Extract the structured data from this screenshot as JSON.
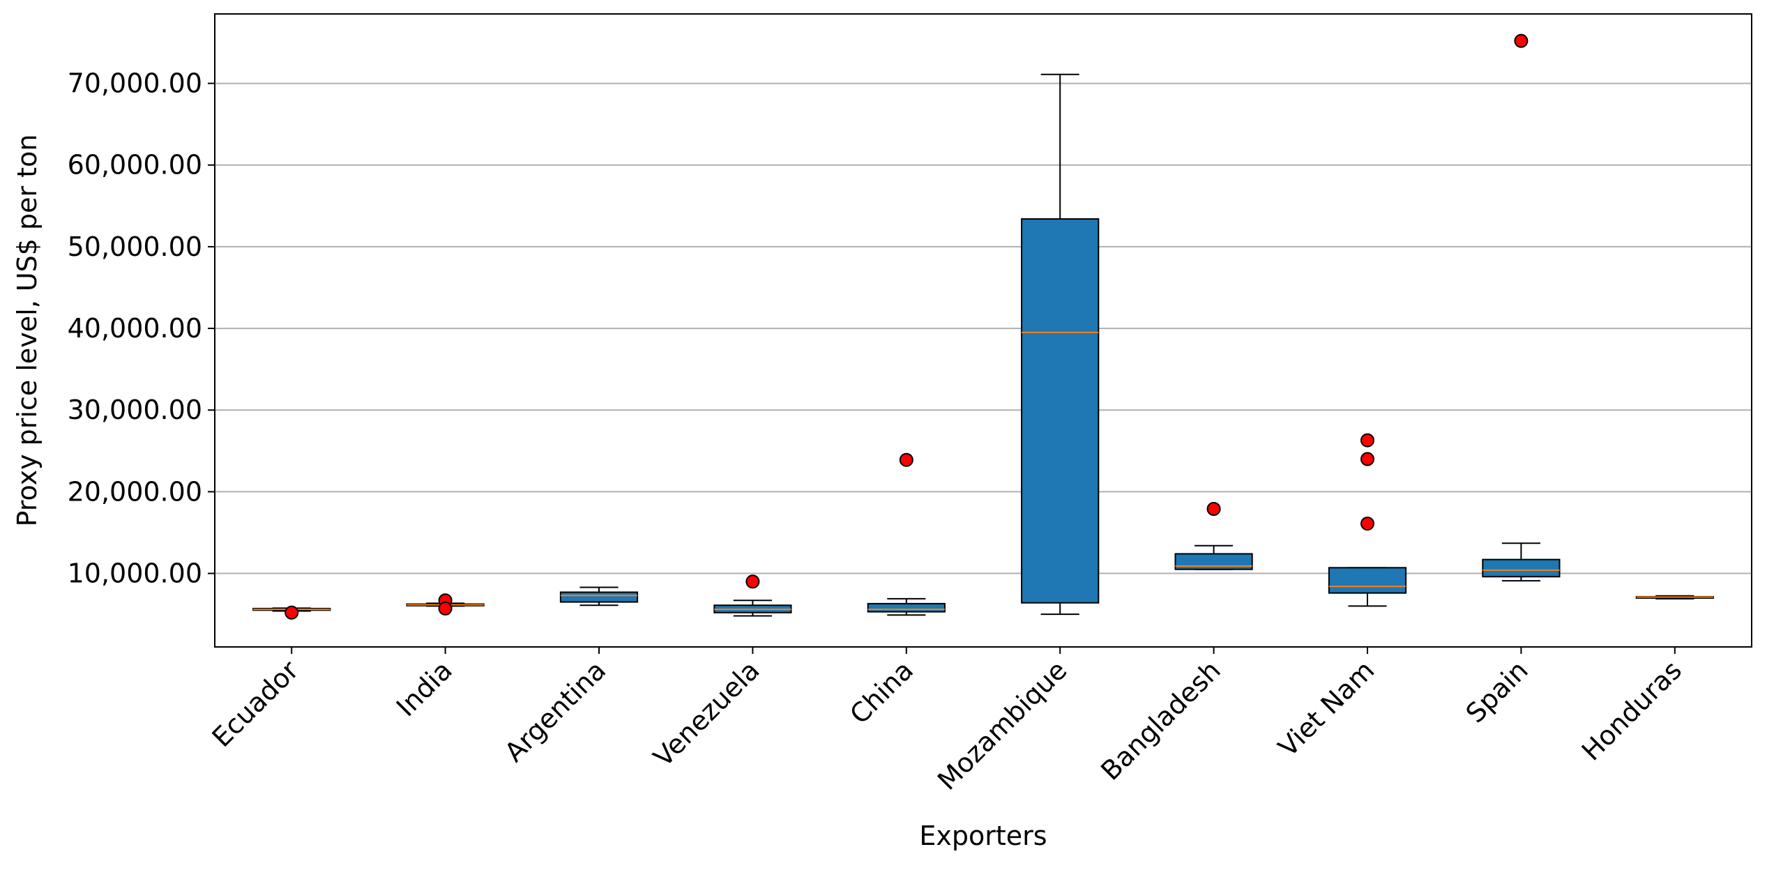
{
  "chart_data": {
    "type": "box",
    "title": "",
    "xlabel": "Exporters",
    "ylabel": "Proxy price level, US$ per ton",
    "ylim": [
      1000,
      78500
    ],
    "grid": "y-major",
    "yticks": [
      10000,
      20000,
      30000,
      40000,
      50000,
      60000,
      70000
    ],
    "ytick_labels": [
      "10,000.00",
      "20,000.00",
      "30,000.00",
      "40,000.00",
      "50,000.00",
      "60,000.00",
      "70,000.00"
    ],
    "categories": [
      "Ecuador",
      "India",
      "Argentina",
      "Venezuela",
      "China",
      "Mozambique",
      "Bangladesh",
      "Viet Nam",
      "Spain",
      "Honduras"
    ],
    "boxes": [
      {
        "whisker_low": 5400,
        "q1": 5500,
        "median": 5600,
        "q3": 5700,
        "whisker_high": 5750,
        "outliers": [
          5200
        ]
      },
      {
        "whisker_low": 6000,
        "q1": 6050,
        "median": 6150,
        "q3": 6250,
        "whisker_high": 6350,
        "outliers": [
          6700,
          5700
        ]
      },
      {
        "whisker_low": 6100,
        "q1": 6500,
        "median": 7300,
        "q3": 7700,
        "whisker_high": 8300,
        "outliers": []
      },
      {
        "whisker_low": 4800,
        "q1": 5200,
        "median": 5600,
        "q3": 6100,
        "whisker_high": 6700,
        "outliers": [
          9000
        ]
      },
      {
        "whisker_low": 4900,
        "q1": 5300,
        "median": 5600,
        "q3": 6300,
        "whisker_high": 6900,
        "outliers": [
          23900
        ]
      },
      {
        "whisker_low": 5000,
        "q1": 6400,
        "median": 39500,
        "q3": 53400,
        "whisker_high": 71100,
        "outliers": []
      },
      {
        "whisker_low": 10500,
        "q1": 10500,
        "median": 10900,
        "q3": 12400,
        "whisker_high": 13400,
        "outliers": [
          17900
        ]
      },
      {
        "whisker_low": 6000,
        "q1": 7600,
        "median": 8400,
        "q3": 10700,
        "whisker_high": 10700,
        "outliers": [
          16100,
          24000,
          26300
        ]
      },
      {
        "whisker_low": 9100,
        "q1": 9600,
        "median": 10400,
        "q3": 11700,
        "whisker_high": 13700,
        "outliers": [
          75200
        ]
      },
      {
        "whisker_low": 6900,
        "q1": 7000,
        "median": 7100,
        "q3": 7150,
        "whisker_high": 7250,
        "outliers": []
      }
    ],
    "colors": {
      "box_fill": "#1f77b4",
      "median": "#ff7f0e",
      "outlier": "#ff0000",
      "grid": "#b0b0b0"
    }
  }
}
